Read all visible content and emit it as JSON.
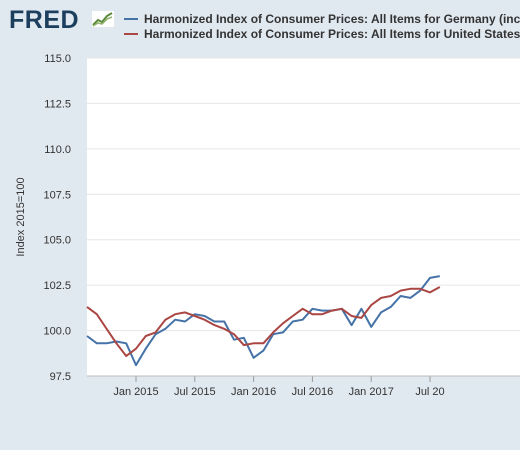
{
  "header": {
    "logo_text": "FRED",
    "logo_icon": "fred-graph-icon"
  },
  "colors": {
    "germany": "#4572a7",
    "united_states": "#aa4643",
    "plot_background": "#ffffff",
    "page_background": "#e1e9f0",
    "grid": "#e6e6e6"
  },
  "chart_data": {
    "type": "line",
    "ylabel": "Index 2015=100",
    "xlabel": "",
    "ylim": [
      97.5,
      115.0
    ],
    "y_ticks": [
      "97.5",
      "100.0",
      "102.5",
      "105.0",
      "107.5",
      "110.0",
      "112.5",
      "115.0"
    ],
    "x_ticks": [
      "Jan 2015",
      "Jul 2015",
      "Jan 2016",
      "Jul 2016",
      "Jan 2017",
      "Jul 20"
    ],
    "x_tick_dates": [
      "2015-01",
      "2015-07",
      "2016-01",
      "2016-07",
      "2017-01",
      "2017-07"
    ],
    "x": [
      "2014-08",
      "2014-09",
      "2014-10",
      "2014-11",
      "2014-12",
      "2015-01",
      "2015-02",
      "2015-03",
      "2015-04",
      "2015-05",
      "2015-06",
      "2015-07",
      "2015-08",
      "2015-09",
      "2015-10",
      "2015-11",
      "2015-12",
      "2016-01",
      "2016-02",
      "2016-03",
      "2016-04",
      "2016-05",
      "2016-06",
      "2016-07",
      "2016-08",
      "2016-09",
      "2016-10",
      "2016-11",
      "2016-12",
      "2017-01",
      "2017-02",
      "2017-03",
      "2017-04",
      "2017-05",
      "2017-06",
      "2017-07",
      "2017-08"
    ],
    "grid": true,
    "legend": "top",
    "series": [
      {
        "name": "Harmonized Index of Consumer Prices: All Items for Germany (inc",
        "values": [
          99.7,
          99.3,
          99.3,
          99.4,
          99.3,
          98.1,
          99.0,
          99.8,
          100.1,
          100.6,
          100.5,
          100.9,
          100.8,
          100.5,
          100.5,
          99.5,
          99.6,
          98.5,
          98.9,
          99.8,
          99.9,
          100.5,
          100.6,
          101.2,
          101.1,
          101.1,
          101.2,
          100.3,
          101.2,
          100.2,
          101.0,
          101.3,
          101.9,
          101.8,
          102.2,
          102.9,
          103.0
        ]
      },
      {
        "name": "Harmonized Index of Consumer Prices: All Items for United States",
        "values": [
          101.3,
          100.9,
          100.1,
          99.3,
          98.6,
          99.0,
          99.7,
          99.9,
          100.6,
          100.9,
          101.0,
          100.8,
          100.6,
          100.3,
          100.1,
          99.8,
          99.2,
          99.3,
          99.3,
          99.9,
          100.4,
          100.8,
          101.2,
          100.9,
          100.9,
          101.1,
          101.2,
          100.8,
          100.7,
          101.4,
          101.8,
          101.9,
          102.2,
          102.3,
          102.3,
          102.1,
          102.4
        ]
      }
    ]
  }
}
